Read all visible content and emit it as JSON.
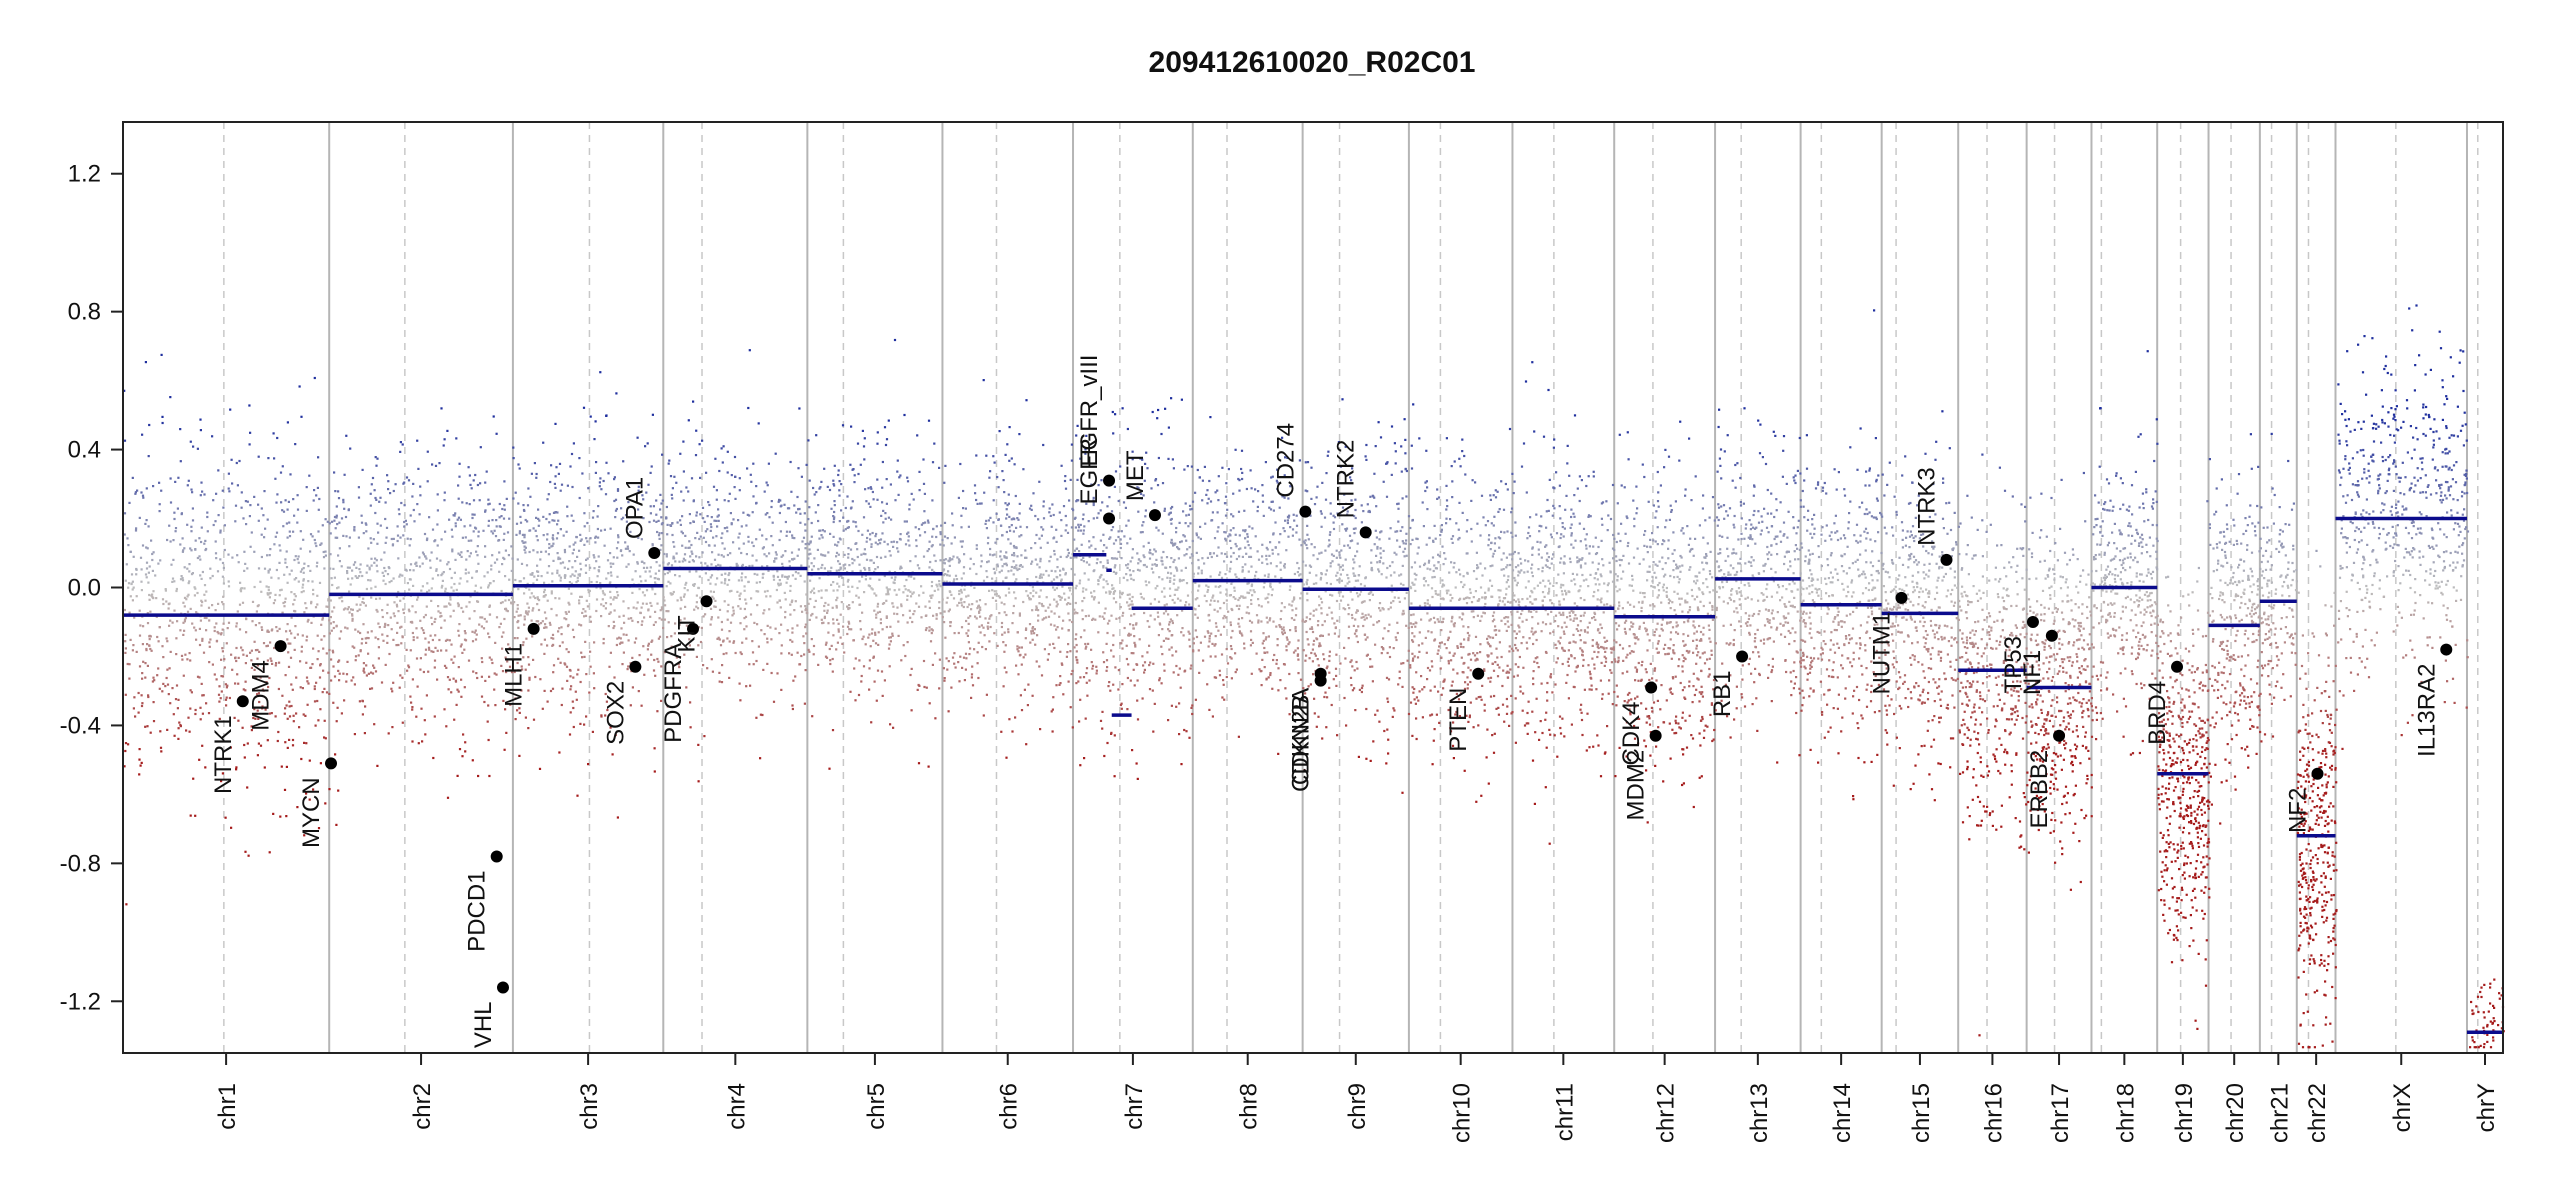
{
  "chart_data": {
    "type": "scatter",
    "title": "209412610020_R02C01",
    "xlabel": "",
    "ylabel": "",
    "ylim": [
      -1.35,
      1.35
    ],
    "yticks": [
      -1.2,
      -0.8,
      -0.4,
      0.0,
      0.4,
      0.8,
      1.2
    ],
    "ytick_labels": [
      "-1.2",
      "-0.8",
      "-0.4",
      "0.0",
      "0.4",
      "0.8",
      "1.2"
    ],
    "grid": false,
    "colors": {
      "gain": "#1f2f9e",
      "loss": "#a51b1b",
      "neutral": "#bdbdbd",
      "segment": "#0b0b8c",
      "gene": "#000000"
    },
    "chromosomes": [
      {
        "name": "chr1",
        "start": 0,
        "end": 2.29
      },
      {
        "name": "chr2",
        "start": 2.29,
        "end": 4.33
      },
      {
        "name": "chr3",
        "start": 4.33,
        "end": 6.0
      },
      {
        "name": "chr4",
        "start": 6.0,
        "end": 7.6
      },
      {
        "name": "chr5",
        "start": 7.6,
        "end": 9.1
      },
      {
        "name": "chr6",
        "start": 9.1,
        "end": 10.55
      },
      {
        "name": "chr7",
        "start": 10.55,
        "end": 11.88
      },
      {
        "name": "chr8",
        "start": 11.88,
        "end": 13.1
      },
      {
        "name": "chr9",
        "start": 13.1,
        "end": 14.28
      },
      {
        "name": "chr10",
        "start": 14.28,
        "end": 15.43
      },
      {
        "name": "chr11",
        "start": 15.43,
        "end": 16.56
      },
      {
        "name": "chr12",
        "start": 16.56,
        "end": 17.68
      },
      {
        "name": "chr13",
        "start": 17.68,
        "end": 18.63
      },
      {
        "name": "chr14",
        "start": 18.63,
        "end": 19.53
      },
      {
        "name": "chr15",
        "start": 19.53,
        "end": 20.38
      },
      {
        "name": "chr16",
        "start": 20.38,
        "end": 21.14
      },
      {
        "name": "chr17",
        "start": 21.14,
        "end": 21.86
      },
      {
        "name": "chr18",
        "start": 21.86,
        "end": 22.59
      },
      {
        "name": "chr19",
        "start": 22.59,
        "end": 23.16
      },
      {
        "name": "chr20",
        "start": 23.16,
        "end": 23.73
      },
      {
        "name": "chr21",
        "start": 23.73,
        "end": 24.14
      },
      {
        "name": "chr22",
        "start": 24.14,
        "end": 24.57
      },
      {
        "name": "chrX",
        "start": 24.57,
        "end": 26.03
      },
      {
        "name": "chrY",
        "start": 26.03,
        "end": 26.43
      }
    ],
    "centromeres": [
      1.12,
      3.13,
      5.18,
      6.43,
      8.0,
      9.7,
      11.07,
      12.26,
      13.51,
      14.63,
      15.89,
      16.99,
      17.97,
      18.86,
      19.69,
      20.7,
      21.45,
      21.97,
      22.85,
      23.41,
      23.86,
      24.27,
      25.24,
      26.15
    ],
    "segments": [
      {
        "x0": 0.0,
        "x1": 2.29,
        "y": -0.08
      },
      {
        "x0": 2.29,
        "x1": 4.33,
        "y": -0.02
      },
      {
        "x0": 4.33,
        "x1": 6.0,
        "y": 0.005
      },
      {
        "x0": 6.0,
        "x1": 7.6,
        "y": 0.055
      },
      {
        "x0": 7.6,
        "x1": 9.1,
        "y": 0.04
      },
      {
        "x0": 9.1,
        "x1": 10.55,
        "y": 0.01
      },
      {
        "x0": 10.55,
        "x1": 10.92,
        "y": 0.095
      },
      {
        "x0": 10.92,
        "x1": 10.98,
        "y": 0.05
      },
      {
        "x0": 10.98,
        "x1": 11.2,
        "y": -0.37
      },
      {
        "x0": 11.2,
        "x1": 11.88,
        "y": -0.06
      },
      {
        "x0": 11.88,
        "x1": 13.1,
        "y": 0.02
      },
      {
        "x0": 13.1,
        "x1": 14.28,
        "y": -0.005
      },
      {
        "x0": 14.28,
        "x1": 16.56,
        "y": -0.06
      },
      {
        "x0": 16.56,
        "x1": 17.68,
        "y": -0.085
      },
      {
        "x0": 17.68,
        "x1": 18.63,
        "y": 0.025
      },
      {
        "x0": 18.63,
        "x1": 19.53,
        "y": -0.05
      },
      {
        "x0": 19.53,
        "x1": 20.38,
        "y": -0.075
      },
      {
        "x0": 20.38,
        "x1": 21.14,
        "y": -0.24
      },
      {
        "x0": 21.14,
        "x1": 21.86,
        "y": -0.29
      },
      {
        "x0": 21.86,
        "x1": 22.59,
        "y": 0.0
      },
      {
        "x0": 22.59,
        "x1": 23.16,
        "y": -0.54
      },
      {
        "x0": 23.16,
        "x1": 23.73,
        "y": -0.11
      },
      {
        "x0": 23.73,
        "x1": 24.14,
        "y": -0.04
      },
      {
        "x0": 24.14,
        "x1": 24.57,
        "y": -0.72
      },
      {
        "x0": 24.57,
        "x1": 26.03,
        "y": 0.2
      },
      {
        "x0": 26.03,
        "x1": 26.43,
        "y": -1.29
      }
    ],
    "genes": [
      {
        "name": "NTRK1",
        "x": 1.33,
        "y": -0.33
      },
      {
        "name": "MDM4",
        "x": 1.75,
        "y": -0.17
      },
      {
        "name": "MYCN",
        "x": 2.31,
        "y": -0.51
      },
      {
        "name": "PDCD1",
        "x": 4.15,
        "y": -0.78
      },
      {
        "name": "VHL",
        "x": 4.22,
        "y": -1.16
      },
      {
        "name": "MLH1",
        "x": 4.56,
        "y": -0.12
      },
      {
        "name": "SOX2",
        "x": 5.69,
        "y": -0.23
      },
      {
        "name": "OPA1",
        "x": 5.9,
        "y": 0.1
      },
      {
        "name": "PDGFRA",
        "x": 6.33,
        "y": -0.12
      },
      {
        "name": "KIT",
        "x": 6.48,
        "y": -0.04
      },
      {
        "name": "EGFR",
        "x": 10.95,
        "y": 0.2
      },
      {
        "name": "EGFR_vIII",
        "x": 10.95,
        "y": 0.31
      },
      {
        "name": "MET",
        "x": 11.46,
        "y": 0.21
      },
      {
        "name": "CD274",
        "x": 13.13,
        "y": 0.22
      },
      {
        "name": "CDKN2A",
        "x": 13.3,
        "y": -0.25
      },
      {
        "name": "CDKN2B",
        "x": 13.3,
        "y": -0.27
      },
      {
        "name": "NTRK2",
        "x": 13.8,
        "y": 0.16
      },
      {
        "name": "PTEN",
        "x": 15.05,
        "y": -0.25
      },
      {
        "name": "CDK4",
        "x": 16.97,
        "y": -0.29
      },
      {
        "name": "MDM2",
        "x": 17.02,
        "y": -0.43
      },
      {
        "name": "RB1",
        "x": 17.98,
        "y": -0.2
      },
      {
        "name": "NUTM1",
        "x": 19.75,
        "y": -0.03
      },
      {
        "name": "NTRK3",
        "x": 20.25,
        "y": 0.08
      },
      {
        "name": "TP53",
        "x": 21.21,
        "y": -0.1
      },
      {
        "name": "NF1",
        "x": 21.42,
        "y": -0.14
      },
      {
        "name": "ERBB2",
        "x": 21.5,
        "y": -0.43
      },
      {
        "name": "BRD4",
        "x": 22.81,
        "y": -0.23
      },
      {
        "name": "NF2",
        "x": 24.37,
        "y": -0.54
      },
      {
        "name": "IL13RA2",
        "x": 25.8,
        "y": -0.18
      }
    ],
    "noise": [
      {
        "chr": "chr1",
        "mean": -0.08,
        "sd": 0.24,
        "n": 900
      },
      {
        "chr": "chr2",
        "mean": -0.02,
        "sd": 0.2,
        "n": 800
      },
      {
        "chr": "chr3",
        "mean": 0.0,
        "sd": 0.2,
        "n": 700
      },
      {
        "chr": "chr4",
        "mean": 0.05,
        "sd": 0.18,
        "n": 600
      },
      {
        "chr": "chr5",
        "mean": 0.04,
        "sd": 0.18,
        "n": 600
      },
      {
        "chr": "chr6",
        "mean": 0.01,
        "sd": 0.18,
        "n": 600
      },
      {
        "chr": "chr7",
        "mean": 0.0,
        "sd": 0.2,
        "n": 600
      },
      {
        "chr": "chr8",
        "mean": 0.02,
        "sd": 0.17,
        "n": 500
      },
      {
        "chr": "chr9",
        "mean": -0.01,
        "sd": 0.2,
        "n": 500
      },
      {
        "chr": "chr10",
        "mean": -0.06,
        "sd": 0.2,
        "n": 550
      },
      {
        "chr": "chr11",
        "mean": -0.06,
        "sd": 0.2,
        "n": 550
      },
      {
        "chr": "chr12",
        "mean": -0.09,
        "sd": 0.2,
        "n": 550
      },
      {
        "chr": "chr13",
        "mean": 0.02,
        "sd": 0.18,
        "n": 400
      },
      {
        "chr": "chr14",
        "mean": -0.05,
        "sd": 0.2,
        "n": 400
      },
      {
        "chr": "chr15",
        "mean": -0.07,
        "sd": 0.2,
        "n": 400
      },
      {
        "chr": "chr16",
        "mean": -0.24,
        "sd": 0.22,
        "n": 400
      },
      {
        "chr": "chr17",
        "mean": -0.29,
        "sd": 0.22,
        "n": 450
      },
      {
        "chr": "chr18",
        "mean": 0.0,
        "sd": 0.18,
        "n": 350
      },
      {
        "chr": "chr19",
        "mean": -0.54,
        "sd": 0.24,
        "n": 500
      },
      {
        "chr": "chr20",
        "mean": -0.11,
        "sd": 0.2,
        "n": 300
      },
      {
        "chr": "chr21",
        "mean": -0.04,
        "sd": 0.18,
        "n": 150
      },
      {
        "chr": "chr22",
        "mean": -0.72,
        "sd": 0.26,
        "n": 400
      },
      {
        "chr": "chrX",
        "mean": 0.2,
        "sd": 0.22,
        "n": 600
      },
      {
        "chr": "chrY",
        "mean": -1.25,
        "sd": 0.06,
        "n": 60
      }
    ]
  }
}
